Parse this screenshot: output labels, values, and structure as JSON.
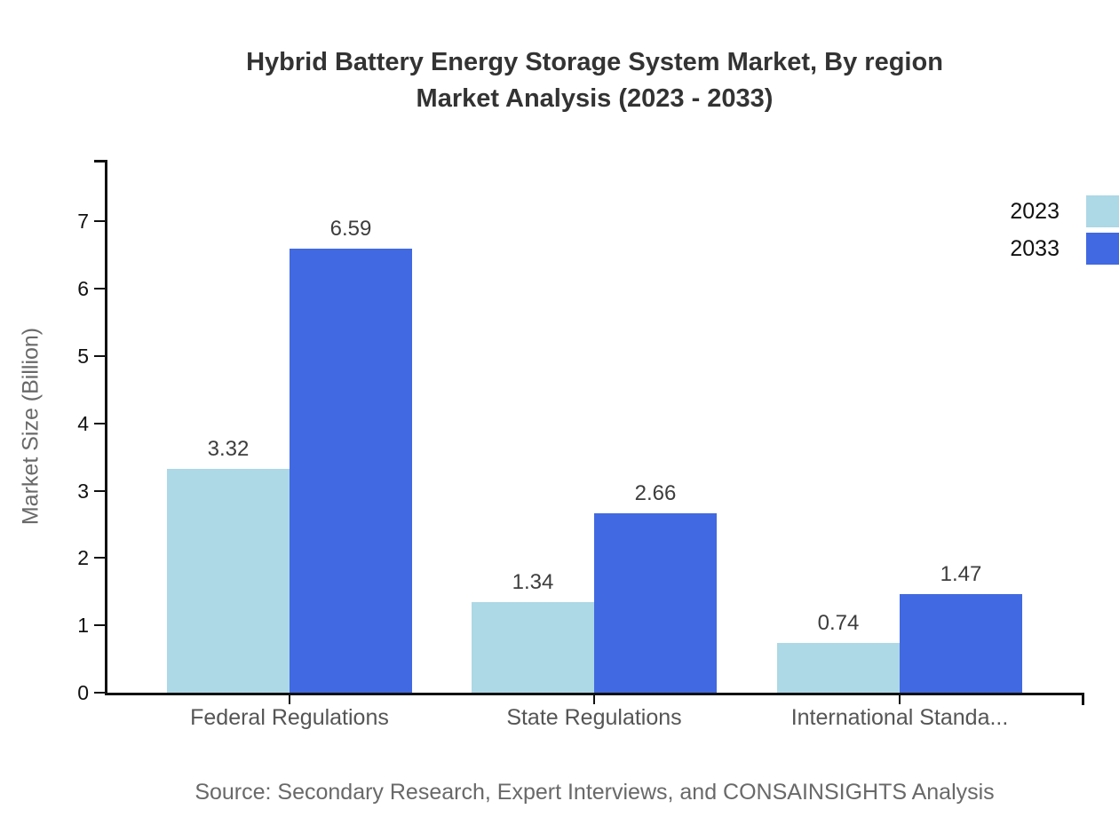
{
  "title": {
    "line1": "Hybrid Battery Energy Storage System Market, By region",
    "line2": "Market Analysis (2023 - 2033)"
  },
  "y_axis": {
    "label": "Market Size (Billion)"
  },
  "legend": {
    "items": [
      {
        "label": "2023",
        "color": "#ADD8E6"
      },
      {
        "label": "2033",
        "color": "#4169E1"
      }
    ]
  },
  "source": "Source: Secondary Research, Expert Interviews, and CONSAINSIGHTS Analysis",
  "chart_data": {
    "type": "bar",
    "title": "Hybrid Battery Energy Storage System Market, By region Market Analysis (2023 - 2033)",
    "categories": [
      "Federal Regulations",
      "State Regulations",
      "International Standa..."
    ],
    "series": [
      {
        "name": "2023",
        "color": "#ADD8E6",
        "values": [
          3.32,
          1.34,
          0.74
        ]
      },
      {
        "name": "2033",
        "color": "#4169E1",
        "values": [
          6.59,
          2.66,
          1.47
        ]
      }
    ],
    "value_labels": [
      "3.32",
      "6.59",
      "1.34",
      "2.66",
      "0.74",
      "1.47"
    ],
    "xlabel": "",
    "ylabel": "Market Size (Billion)",
    "y_ticks": [
      0,
      1,
      2,
      3,
      4,
      5,
      6,
      7
    ],
    "ylim": [
      0,
      7.92
    ],
    "grid": false,
    "legend_position": "top-right",
    "axis_color": "#111111"
  }
}
